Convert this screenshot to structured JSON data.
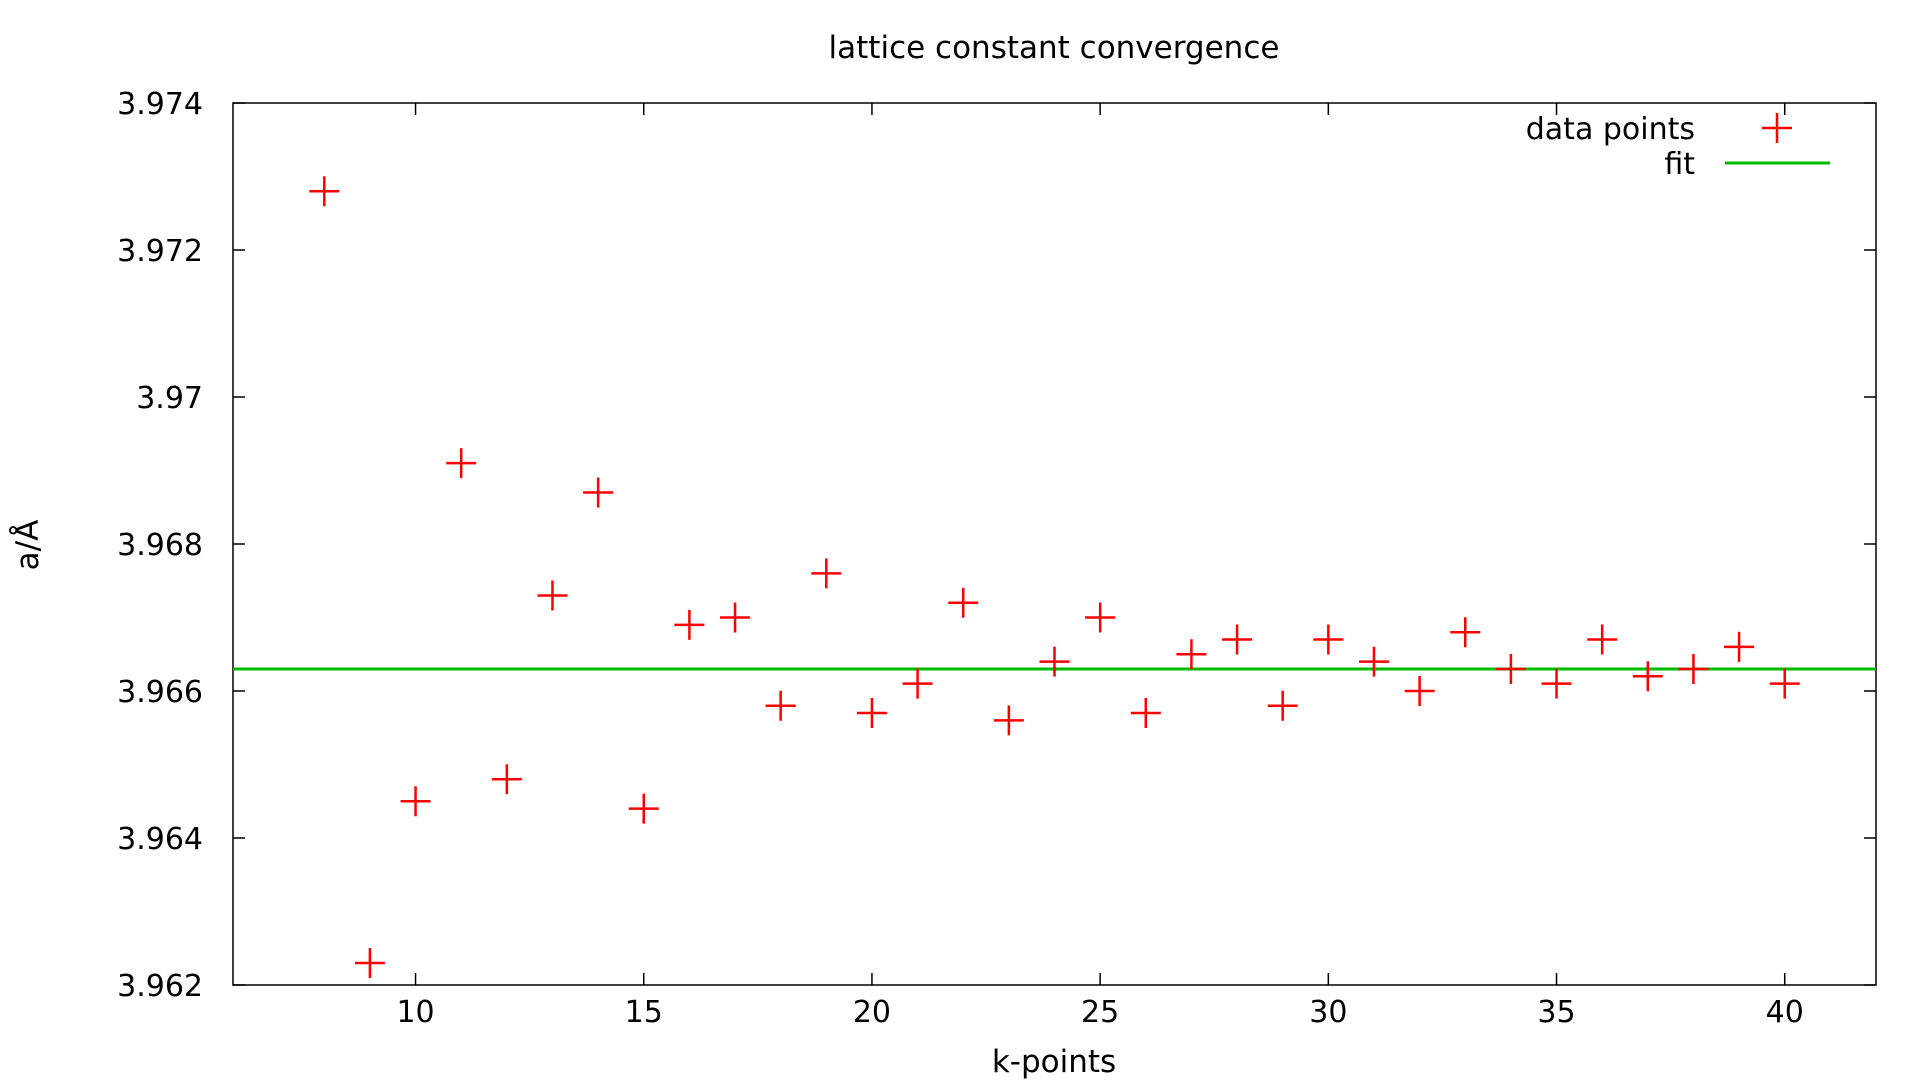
{
  "chart_data": {
    "type": "scatter",
    "title": "lattice constant convergence",
    "xlabel": "k-points",
    "ylabel": "a/Å",
    "xlim": [
      6,
      42
    ],
    "ylim": [
      3.962,
      3.974
    ],
    "xticks": [
      10,
      15,
      20,
      25,
      30,
      35,
      40
    ],
    "xtick_labels": [
      "10",
      "15",
      "20",
      "25",
      "30",
      "35",
      "40"
    ],
    "yticks": [
      3.962,
      3.964,
      3.966,
      3.968,
      3.97,
      3.972,
      3.974
    ],
    "ytick_labels": [
      "3.962",
      "3.964",
      "3.966",
      "3.968",
      "3.97",
      "3.972",
      "3.974"
    ],
    "grid": false,
    "legend_position": "top-right",
    "series": [
      {
        "name": "data points",
        "kind": "points",
        "marker": "plus",
        "color": "#ff0000",
        "x": [
          8,
          9,
          10,
          11,
          12,
          13,
          14,
          15,
          16,
          17,
          18,
          19,
          20,
          21,
          22,
          23,
          24,
          25,
          26,
          27,
          28,
          29,
          30,
          31,
          32,
          33,
          34,
          35,
          36,
          37,
          38,
          39,
          40
        ],
        "y": [
          3.9728,
          3.9623,
          3.9645,
          3.9691,
          3.9648,
          3.9673,
          3.9687,
          3.9644,
          3.9669,
          3.967,
          3.9658,
          3.9676,
          3.9657,
          3.9661,
          3.9672,
          3.9656,
          3.9664,
          3.967,
          3.9657,
          3.9665,
          3.9667,
          3.9658,
          3.9667,
          3.9664,
          3.966,
          3.9668,
          3.9663,
          3.9661,
          3.9667,
          3.9662,
          3.9663,
          3.9666,
          3.9661
        ]
      },
      {
        "name": "fit",
        "kind": "hline",
        "color": "#00bb00",
        "y": 3.9663
      }
    ]
  }
}
